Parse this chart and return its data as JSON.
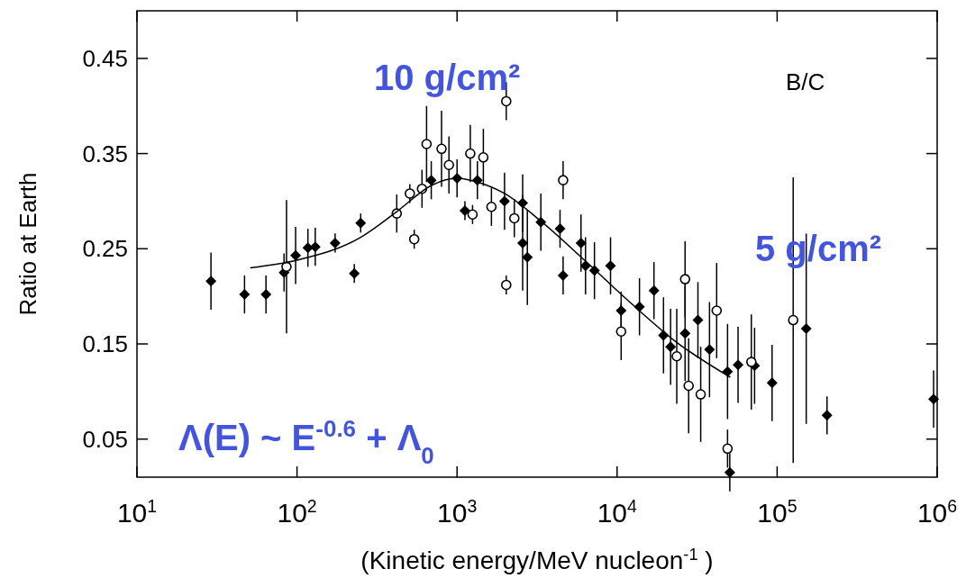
{
  "chart_data": {
    "type": "scatter",
    "xlabel": "(Kinetic energy/MeV nucleon$^{-1}$)",
    "ylabel": "Ratio at Earth",
    "log": "x",
    "xlim": [
      10,
      1000000
    ],
    "ylim": [
      0.01,
      0.5
    ],
    "xticks": [
      {
        "value": 10,
        "label": "10$^{1}$"
      },
      {
        "value": 100,
        "label": "10$^{2}$"
      },
      {
        "value": 1000,
        "label": "10$^{3}$"
      },
      {
        "value": 10000,
        "label": "10$^{4}$"
      },
      {
        "value": 100000,
        "label": "10$^{5}$"
      },
      {
        "value": 1000000,
        "label": "10$^{6}$"
      }
    ],
    "yticks": [
      0.05,
      0.15,
      0.25,
      0.35,
      0.45
    ],
    "grid": false,
    "annotations": [
      "10 g/cm²",
      "B/C",
      "5 g/cm²",
      "Λ(E) ~ E$^{-0.6}$ + Λ$_{0}$"
    ],
    "series": [
      {
        "marker": "diamond",
        "color": "#000000",
        "x": [
          29,
          47,
          64,
          83,
          98,
          117,
          130,
          173,
          250,
          690,
          1000,
          1340,
          1980,
          2570,
          2570,
          2750,
          3340,
          4400,
          4600,
          5950,
          6350,
          7220,
          9100,
          10600,
          13800,
          17000,
          19500,
          21600,
          26600,
          32000,
          37800,
          49000,
          57000,
          72300,
          93000,
          152000,
          205000,
          950000,
          50600,
          228,
          1120
        ],
        "values": [
          0.216,
          0.202,
          0.202,
          0.225,
          0.243,
          0.251,
          0.252,
          0.256,
          0.277,
          0.322,
          0.324,
          0.322,
          0.3,
          0.298,
          0.256,
          0.241,
          0.278,
          0.271,
          0.222,
          0.256,
          0.232,
          0.227,
          0.232,
          0.185,
          0.189,
          0.206,
          0.159,
          0.147,
          0.161,
          0.175,
          0.144,
          0.121,
          0.128,
          0.127,
          0.109,
          0.166,
          0.075,
          0.092,
          0.015,
          0.224,
          0.29
        ],
        "errors": [
          0.03,
          0.02,
          0.02,
          0.02,
          0.03,
          0.02,
          0.02,
          0.01,
          0.01,
          0.02,
          0.02,
          0.02,
          0.03,
          0.03,
          0.05,
          0.05,
          0.03,
          0.02,
          0.02,
          0.03,
          0.03,
          0.03,
          0.03,
          0.02,
          0.03,
          0.03,
          0.04,
          0.04,
          0.05,
          0.04,
          0.05,
          0.05,
          0.04,
          0.04,
          0.04,
          0.1,
          0.02,
          0.03,
          0.02,
          0.01,
          0.01
        ]
      },
      {
        "marker": "circle",
        "color": "#000000",
        "x": [
          86,
          420,
          507,
          540,
          604,
          645,
          800,
          890,
          1210,
          1250,
          1460,
          1640,
          2030,
          2030,
          2280,
          4600,
          10600,
          23600,
          26600,
          28000,
          33300,
          41900,
          49000,
          69000,
          126000
        ],
        "values": [
          0.231,
          0.287,
          0.308,
          0.26,
          0.313,
          0.36,
          0.355,
          0.338,
          0.35,
          0.286,
          0.346,
          0.294,
          0.405,
          0.212,
          0.282,
          0.322,
          0.163,
          0.137,
          0.218,
          0.106,
          0.097,
          0.185,
          0.04,
          0.131,
          0.175
        ],
        "errors": [
          0.07,
          0.02,
          0.01,
          0.01,
          0.02,
          0.04,
          0.04,
          0.03,
          0.03,
          0.01,
          0.03,
          0.02,
          0.02,
          0.01,
          0.02,
          0.02,
          0.03,
          0.05,
          0.04,
          0.05,
          0.05,
          0.05,
          0.02,
          0.05,
          0.15
        ]
      },
      {
        "type": "line",
        "marker": "none",
        "color": "#000000",
        "x": [
          51,
          100,
          250,
          420,
          700,
          1000,
          1340,
          1980,
          3340,
          6350,
          12000,
          23000,
          51000
        ],
        "values": [
          0.23,
          0.238,
          0.262,
          0.289,
          0.317,
          0.324,
          0.32,
          0.308,
          0.279,
          0.237,
          0.194,
          0.153,
          0.115
        ]
      }
    ]
  }
}
